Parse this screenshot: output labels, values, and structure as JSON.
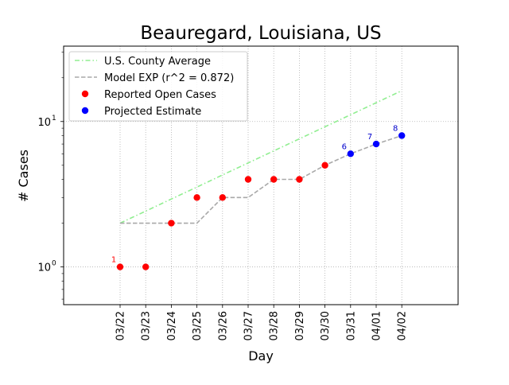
{
  "chart_data": {
    "type": "scatter",
    "title": "Beauregard, Louisiana, US",
    "xlabel": "Day",
    "ylabel": "# Cases",
    "yscale": "log",
    "ylim": [
      0.55,
      33
    ],
    "y_ticks": [
      {
        "value": 1,
        "base": "10",
        "exp": "0"
      },
      {
        "value": 10,
        "base": "10",
        "exp": "1"
      }
    ],
    "grid": true,
    "legend_position": "top-left",
    "categories": [
      "03/22",
      "03/23",
      "03/24",
      "03/25",
      "03/26",
      "03/27",
      "03/28",
      "03/29",
      "03/30",
      "03/31",
      "04/01",
      "04/02"
    ],
    "series": [
      {
        "name": "U.S. County Average",
        "kind": "line",
        "style": "dashdot",
        "color": "#90ee90",
        "values": [
          2.0,
          2.42,
          2.93,
          3.54,
          4.29,
          5.19,
          6.28,
          7.6,
          9.2,
          11.13,
          13.47,
          16.3
        ]
      },
      {
        "name": "Model EXP (r^2 = 0.872)",
        "kind": "line",
        "style": "dashed",
        "color": "#a9a9a9",
        "values": [
          2,
          2,
          2,
          2,
          3,
          3,
          4,
          4,
          5,
          6,
          7,
          8
        ]
      },
      {
        "name": "Reported Open Cases",
        "kind": "scatter",
        "color": "#ff0000",
        "values": [
          1,
          1,
          2,
          3,
          3,
          4,
          4,
          4,
          5,
          null,
          null,
          null
        ]
      },
      {
        "name": "Projected Estimate",
        "kind": "scatter",
        "color": "#0000ff",
        "values": [
          null,
          null,
          null,
          null,
          null,
          null,
          null,
          null,
          null,
          6,
          7,
          8
        ]
      }
    ],
    "annotations": [
      {
        "category": "03/22",
        "y": 1,
        "text": "1",
        "color": "#ff0000"
      },
      {
        "category": "03/31",
        "y": 6,
        "text": "6",
        "color": "#0000cc"
      },
      {
        "category": "04/01",
        "y": 7,
        "text": "7",
        "color": "#0000cc"
      },
      {
        "category": "04/02",
        "y": 8,
        "text": "8",
        "color": "#0000cc"
      }
    ]
  }
}
